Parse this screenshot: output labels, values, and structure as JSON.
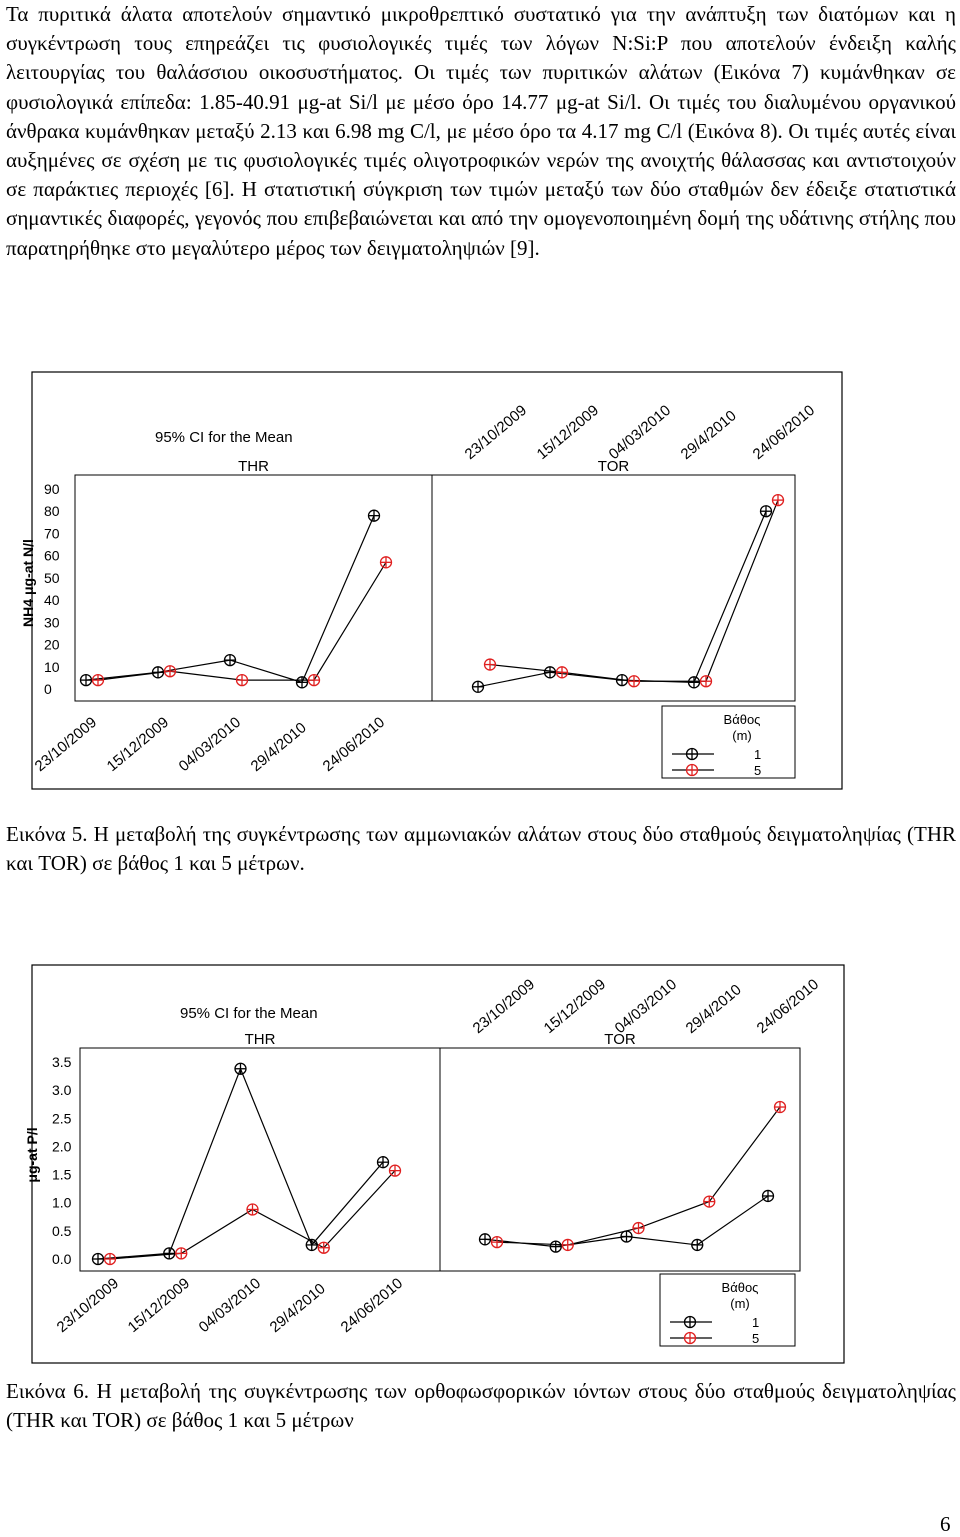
{
  "paragraph": "Τα πυριτικά άλατα αποτελούν σημαντικό μικροθρεπτικό συστατικό για την ανάπτυξη των διατόμων και η συγκέντρωση τους επηρεάζει τις φυσιολογικές τιμές των λόγων N:Si:P που αποτελούν ένδειξη καλής λειτουργίας του θαλάσσιου οικοσυστήματος. Οι τιμές των πυριτικών αλάτων (Εικόνα 7) κυμάνθηκαν σε φυσιολογικά επίπεδα: 1.85-40.91 μg-at Si/l με μέσο όρο 14.77 μg-at Si/l. Οι τιμές του διαλυμένου οργανικού άνθρακα κυμάνθηκαν μεταξύ 2.13 και 6.98 mg C/l, με μέσο όρο τα 4.17 mg C/l (Εικόνα 8). Οι τιμές αυτές είναι αυξημένες σε σχέση με τις φυσιολογικές τιμές ολιγοτροφικών νερών της ανοιχτής θάλασσας και αντιστοιχούν σε παράκτιες περιοχές [6]. Η στατιστική σύγκριση των τιμών μεταξύ των δύο σταθμών δεν έδειξε στατιστικά σημαντικές διαφορές, γεγονός που επιβεβαιώνεται και από την ομογενοποιημένη δομή της υδάτινης στήλης που παρατηρήθηκε στο μεγαλύτερο μέρος των δειγματοληψιών [9].",
  "caption5": "Εικόνα 5. Η μεταβολή της συγκέντρωσης των αμμωνιακών αλάτων στους δύο σταθμούς δειγματοληψίας (THR και TOR) σε βάθος 1 και 5 μέτρων.",
  "caption6": "Εικόνα 6. Η μεταβολή της συγκέντρωσης των ορθοφωσφορικών ιόντων στους δύο σταθμούς δειγματοληψίας (THR και TOR) σε βάθος 1 και 5 μέτρων",
  "page_number": "6",
  "colors": {
    "depth1": "#000000",
    "depth5": "#e02020"
  },
  "chart_data": [
    {
      "type": "line",
      "title": "95% CI for the Mean",
      "ylabel": "NH4 μg-at N/l",
      "yticks": [
        "90",
        "80",
        "70",
        "60",
        "50",
        "40",
        "30",
        "20",
        "10",
        "0"
      ],
      "ylim": [
        0,
        90
      ],
      "categories": [
        "23/10/2009",
        "15/12/2009",
        "04/03/2010",
        "29/4/2010",
        "24/06/2010"
      ],
      "panels": [
        {
          "name": "THR",
          "series": [
            {
              "name": "1",
              "values": [
                4,
                7.5,
                13,
                3,
                78
              ]
            },
            {
              "name": "5",
              "values": [
                4,
                8,
                4,
                4,
                57
              ]
            }
          ]
        },
        {
          "name": "TOR",
          "series": [
            {
              "name": "1",
              "values": [
                1,
                7.5,
                4,
                3,
                80
              ]
            },
            {
              "name": "5",
              "values": [
                11,
                7.5,
                3.5,
                3.5,
                85
              ]
            }
          ]
        }
      ],
      "legend": {
        "title_line1": "Βάθος",
        "title_line2": "(m)",
        "items": [
          "1",
          "5"
        ]
      }
    },
    {
      "type": "line",
      "title": "95% CI for the Mean",
      "ylabel": "μg-at P/l",
      "yticks": [
        "3.5",
        "3.0",
        "2.5",
        "2.0",
        "1.5",
        "1.0",
        "0.5",
        "0.0"
      ],
      "ylim": [
        0,
        3.5
      ],
      "categories": [
        "23/10/2009",
        "15/12/2009",
        "04/03/2010",
        "29/4/2010",
        "24/06/2010"
      ],
      "panels": [
        {
          "name": "THR",
          "series": [
            {
              "name": "1",
              "values": [
                0.0,
                0.1,
                3.38,
                0.25,
                1.72
              ]
            },
            {
              "name": "5",
              "values": [
                0.0,
                0.1,
                0.88,
                0.2,
                1.57
              ]
            }
          ]
        },
        {
          "name": "TOR",
          "series": [
            {
              "name": "1",
              "values": [
                0.35,
                0.22,
                0.4,
                0.25,
                1.12
              ]
            },
            {
              "name": "5",
              "values": [
                0.3,
                0.25,
                0.55,
                1.02,
                2.7
              ]
            }
          ]
        }
      ],
      "legend": {
        "title_line1": "Βάθος",
        "title_line2": "(m)",
        "items": [
          "1",
          "5"
        ]
      }
    }
  ]
}
